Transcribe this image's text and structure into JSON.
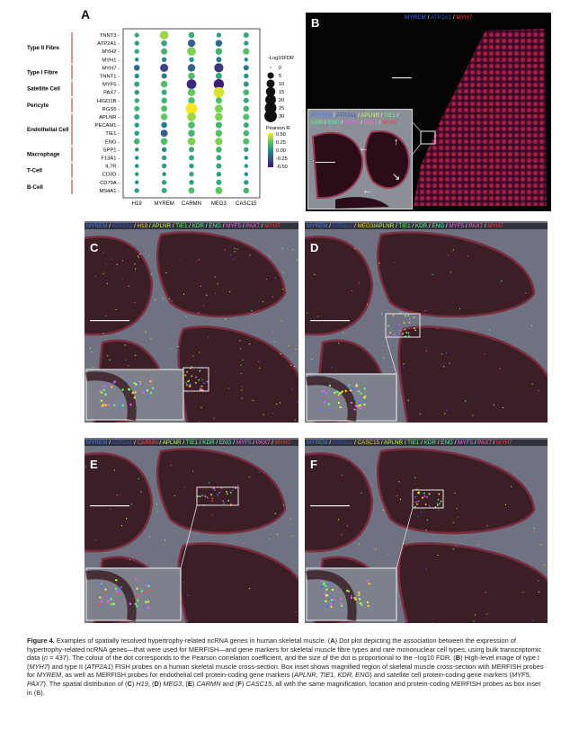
{
  "panelA": {
    "letter": "A",
    "groups": [
      {
        "label": "Type II Fibre",
        "genes": [
          "TNNT3",
          "ATP2A1",
          "MYH2",
          "MYH1"
        ]
      },
      {
        "label": "Type I Fibre",
        "genes": [
          "MYH7",
          "TNNT1"
        ]
      },
      {
        "label": "Satellite Cell",
        "genes": [
          "MYF5",
          "PAX7"
        ]
      },
      {
        "label": "Pericyte",
        "genes": [
          "HIGD1B",
          "RGS5"
        ]
      },
      {
        "label": "Endothelial Cell",
        "genes": [
          "APLNR",
          "PECAM1",
          "TIE1",
          "ENG"
        ]
      },
      {
        "label": "Macrophage",
        "genes": [
          "SPP1",
          "F13A1"
        ]
      },
      {
        "label": "T-Cell",
        "genes": [
          "IL7R",
          "CD3D"
        ]
      },
      {
        "label": "B-Cell",
        "genes": [
          "CD79A",
          "MS4A1"
        ]
      }
    ],
    "columns": [
      "H19",
      "MYREM",
      "CARMN",
      "MEG3",
      "CASC15"
    ],
    "size_legend": {
      "title": "-Log10FDR",
      "values": [
        "0",
        "5",
        "10",
        "15",
        "20",
        "25",
        "30"
      ]
    },
    "color_legend": {
      "title": "Pearson R",
      "values": [
        "0.50",
        "0.25",
        "0.00",
        "-0.25",
        "-0.50"
      ]
    },
    "colors": {
      "low": "#3b0f70",
      "mid": "#21918c",
      "high": "#fde725",
      "separator": "#cc2222"
    }
  },
  "chart_data": {
    "type": "dot-plot",
    "rows": [
      "TNNT3",
      "ATP2A1",
      "MYH2",
      "MYH1",
      "MYH7",
      "TNNT1",
      "MYF5",
      "PAX7",
      "HIGD1B",
      "RGS5",
      "APLNR",
      "PECAM1",
      "TIE1",
      "ENG",
      "SPP1",
      "F13A1",
      "IL7R",
      "CD3D",
      "CD79A",
      "MS4A1"
    ],
    "columns": [
      "H19",
      "MYREM",
      "CARMN",
      "MEG3",
      "CASC15"
    ],
    "size_label": "-Log10FDR",
    "color_label": "Pearson R",
    "color_range": [
      -0.5,
      0.5
    ],
    "size_range": [
      0,
      30
    ],
    "points": [
      [
        [
          0.1,
          2
        ],
        [
          0.35,
          12
        ],
        [
          0.1,
          4
        ],
        [
          0.05,
          2
        ],
        [
          0.1,
          3
        ]
      ],
      [
        [
          0.05,
          2
        ],
        [
          0.1,
          4
        ],
        [
          -0.2,
          8
        ],
        [
          -0.15,
          6
        ],
        [
          0.05,
          2
        ]
      ],
      [
        [
          0.1,
          2
        ],
        [
          0.15,
          5
        ],
        [
          0.3,
          12
        ],
        [
          0.15,
          6
        ],
        [
          0.2,
          5
        ]
      ],
      [
        [
          0.0,
          1
        ],
        [
          -0.05,
          2
        ],
        [
          0.0,
          2
        ],
        [
          -0.1,
          3
        ],
        [
          0.0,
          1
        ]
      ],
      [
        [
          -0.15,
          4
        ],
        [
          -0.3,
          10
        ],
        [
          -0.2,
          8
        ],
        [
          -0.35,
          14
        ],
        [
          -0.1,
          3
        ]
      ],
      [
        [
          0.0,
          2
        ],
        [
          -0.1,
          3
        ],
        [
          0.2,
          6
        ],
        [
          0.1,
          5
        ],
        [
          0.0,
          2
        ]
      ],
      [
        [
          0.1,
          3
        ],
        [
          0.2,
          6
        ],
        [
          -0.4,
          16
        ],
        [
          -0.45,
          18
        ],
        [
          0.05,
          3
        ]
      ],
      [
        [
          0.05,
          2
        ],
        [
          0.1,
          3
        ],
        [
          0.25,
          8
        ],
        [
          0.45,
          20
        ],
        [
          0.15,
          4
        ]
      ],
      [
        [
          0.1,
          2
        ],
        [
          0.15,
          4
        ],
        [
          0.2,
          6
        ],
        [
          0.2,
          5
        ],
        [
          0.1,
          3
        ]
      ],
      [
        [
          0.15,
          3
        ],
        [
          0.2,
          5
        ],
        [
          0.5,
          24
        ],
        [
          0.3,
          10
        ],
        [
          0.15,
          4
        ]
      ],
      [
        [
          0.1,
          3
        ],
        [
          0.25,
          6
        ],
        [
          0.35,
          12
        ],
        [
          0.3,
          9
        ],
        [
          0.2,
          5
        ]
      ],
      [
        [
          0.05,
          2
        ],
        [
          -0.1,
          4
        ],
        [
          0.2,
          6
        ],
        [
          0.15,
          5
        ],
        [
          0.1,
          3
        ]
      ],
      [
        [
          0.05,
          2
        ],
        [
          -0.2,
          7
        ],
        [
          0.15,
          6
        ],
        [
          0.2,
          6
        ],
        [
          0.15,
          4
        ]
      ],
      [
        [
          0.15,
          4
        ],
        [
          0.2,
          6
        ],
        [
          0.3,
          9
        ],
        [
          0.3,
          8
        ],
        [
          0.2,
          5
        ]
      ],
      [
        [
          0.05,
          1
        ],
        [
          0.0,
          2
        ],
        [
          0.1,
          3
        ],
        [
          0.15,
          4
        ],
        [
          0.05,
          2
        ]
      ],
      [
        [
          0.0,
          1
        ],
        [
          0.05,
          2
        ],
        [
          0.1,
          3
        ],
        [
          0.1,
          3
        ],
        [
          0.0,
          1
        ]
      ],
      [
        [
          0.0,
          1
        ],
        [
          0.05,
          2
        ],
        [
          0.05,
          2
        ],
        [
          0.1,
          3
        ],
        [
          0.05,
          1
        ]
      ],
      [
        [
          0.05,
          1
        ],
        [
          0.0,
          1
        ],
        [
          0.1,
          2
        ],
        [
          0.05,
          2
        ],
        [
          0.0,
          1
        ]
      ],
      [
        [
          0.0,
          1
        ],
        [
          0.05,
          2
        ],
        [
          0.05,
          2
        ],
        [
          0.1,
          3
        ],
        [
          0.05,
          2
        ]
      ],
      [
        [
          0.05,
          2
        ],
        [
          0.1,
          3
        ],
        [
          0.2,
          5
        ],
        [
          0.25,
          7
        ],
        [
          0.15,
          4
        ]
      ]
    ]
  },
  "panelB": {
    "letter": "B",
    "caption_parts": [
      {
        "text": "MYREM",
        "color": "#4466ff"
      },
      {
        "text": " / ",
        "color": "#ffffff"
      },
      {
        "text": "ATP2A1",
        "color": "#3355cc"
      },
      {
        "text": " / ",
        "color": "#ffffff"
      },
      {
        "text": "MYH7",
        "color": "#ff3333"
      }
    ],
    "inset_caption_line1": [
      {
        "text": "MYREM",
        "color": "#4477ff"
      },
      {
        "text": " / ",
        "color": "#fff"
      },
      {
        "text": "ATP2A1",
        "color": "#3355cc"
      },
      {
        "text": " / ",
        "color": "#fff"
      },
      {
        "text": "APLNR",
        "color": "#c7ff5a"
      },
      {
        "text": " / ",
        "color": "#fff"
      },
      {
        "text": "TIE1",
        "color": "#58ff5a"
      },
      {
        "text": " /",
        "color": "#fff"
      }
    ],
    "inset_caption_line2": [
      {
        "text": "KDR",
        "color": "#56ff8a"
      },
      {
        "text": " / ",
        "color": "#fff"
      },
      {
        "text": "ENG",
        "color": "#40ffb0"
      },
      {
        "text": " / ",
        "color": "#fff"
      },
      {
        "text": "MYF5",
        "color": "#ff55ff"
      },
      {
        "text": " / ",
        "color": "#fff"
      },
      {
        "text": "PAX7",
        "color": "#ff66cc"
      },
      {
        "text": " / ",
        "color": "#fff"
      },
      {
        "text": "MYH7",
        "color": "#ff3333"
      }
    ]
  },
  "panels": [
    {
      "letter": "C",
      "highlight": "H19",
      "highlight_color": "#ffd21e",
      "caption_parts": [
        {
          "text": "MYREM",
          "color": "#4477ff"
        },
        {
          "text": " / ",
          "color": "#fff"
        },
        {
          "text": "ATP2A1",
          "color": "#3355cc"
        },
        {
          "text": " / ",
          "color": "#fff"
        },
        {
          "text": "H19",
          "color": "#ffd21e"
        },
        {
          "text": " / ",
          "color": "#fff"
        },
        {
          "text": "APLNR",
          "color": "#c7ff5a"
        },
        {
          "text": " / ",
          "color": "#fff"
        },
        {
          "text": "TIE1",
          "color": "#58ff5a"
        },
        {
          "text": " / ",
          "color": "#fff"
        },
        {
          "text": "KDR",
          "color": "#56ff8a"
        },
        {
          "text": " / ",
          "color": "#fff"
        },
        {
          "text": "ENG",
          "color": "#40ffb0"
        },
        {
          "text": " / ",
          "color": "#fff"
        },
        {
          "text": "MYF5",
          "color": "#ff55ff"
        },
        {
          "text": " / ",
          "color": "#fff"
        },
        {
          "text": "PAX7",
          "color": "#ff66cc"
        },
        {
          "text": " / ",
          "color": "#fff"
        },
        {
          "text": "MYH7",
          "color": "#ff3333"
        }
      ]
    },
    {
      "letter": "D",
      "highlight": "MEG3",
      "highlight_color": "#ffd21e",
      "caption_parts": [
        {
          "text": "MYREM",
          "color": "#4477ff"
        },
        {
          "text": " / ",
          "color": "#fff"
        },
        {
          "text": "ATP2A1",
          "color": "#3355cc"
        },
        {
          "text": " / ",
          "color": "#fff"
        },
        {
          "text": "MEG3",
          "color": "#ffd21e"
        },
        {
          "text": "/",
          "color": "#fff"
        },
        {
          "text": "APLNR",
          "color": "#c7ff5a"
        },
        {
          "text": " / ",
          "color": "#fff"
        },
        {
          "text": "TIE1",
          "color": "#58ff5a"
        },
        {
          "text": " / ",
          "color": "#fff"
        },
        {
          "text": "KDR",
          "color": "#56ff8a"
        },
        {
          "text": " / ",
          "color": "#fff"
        },
        {
          "text": "ENG",
          "color": "#40ffb0"
        },
        {
          "text": " / ",
          "color": "#fff"
        },
        {
          "text": "MYF5",
          "color": "#ff55ff"
        },
        {
          "text": " / ",
          "color": "#fff"
        },
        {
          "text": "PAX7",
          "color": "#ff66cc"
        },
        {
          "text": " / ",
          "color": "#fff"
        },
        {
          "text": "MYH7",
          "color": "#ff3333"
        }
      ]
    },
    {
      "letter": "E",
      "highlight": "CARMN",
      "highlight_color": "#ff4444",
      "caption_parts": [
        {
          "text": "MYREM",
          "color": "#4477ff"
        },
        {
          "text": " / ",
          "color": "#fff"
        },
        {
          "text": "ATP2A1",
          "color": "#3355cc"
        },
        {
          "text": " / ",
          "color": "#fff"
        },
        {
          "text": "CARMN",
          "color": "#ff4444"
        },
        {
          "text": " / ",
          "color": "#fff"
        },
        {
          "text": "APLNR",
          "color": "#c7ff5a"
        },
        {
          "text": " / ",
          "color": "#fff"
        },
        {
          "text": "TIE1",
          "color": "#58ff5a"
        },
        {
          "text": " / ",
          "color": "#fff"
        },
        {
          "text": "KDR",
          "color": "#56ff8a"
        },
        {
          "text": " / ",
          "color": "#fff"
        },
        {
          "text": "ENG",
          "color": "#40ffb0"
        },
        {
          "text": " / ",
          "color": "#fff"
        },
        {
          "text": "MYF5",
          "color": "#ff55ff"
        },
        {
          "text": " / ",
          "color": "#fff"
        },
        {
          "text": "PAX7",
          "color": "#ff66cc"
        },
        {
          "text": " / ",
          "color": "#fff"
        },
        {
          "text": "MYH7",
          "color": "#ff3333"
        }
      ]
    },
    {
      "letter": "F",
      "highlight": "CASC15",
      "highlight_color": "#ffd21e",
      "caption_parts": [
        {
          "text": "MYREM",
          "color": "#4477ff"
        },
        {
          "text": " / ",
          "color": "#fff"
        },
        {
          "text": "ATP2A1",
          "color": "#3355cc"
        },
        {
          "text": " / ",
          "color": "#fff"
        },
        {
          "text": "CASC15",
          "color": "#ffd21e"
        },
        {
          "text": " / ",
          "color": "#fff"
        },
        {
          "text": "APLNR",
          "color": "#c7ff5a"
        },
        {
          "text": " / ",
          "color": "#fff"
        },
        {
          "text": "TIE1",
          "color": "#58ff5a"
        },
        {
          "text": " / ",
          "color": "#fff"
        },
        {
          "text": "KDR",
          "color": "#56ff8a"
        },
        {
          "text": " / ",
          "color": "#fff"
        },
        {
          "text": "ENG",
          "color": "#40ffb0"
        },
        {
          "text": " / ",
          "color": "#fff"
        },
        {
          "text": "MYF5",
          "color": "#ff55ff"
        },
        {
          "text": " / ",
          "color": "#fff"
        },
        {
          "text": "PAX7",
          "color": "#ff66cc"
        },
        {
          "text": " / ",
          "color": "#fff"
        },
        {
          "text": "MYH7",
          "color": "#ff3333"
        }
      ]
    }
  ],
  "caption": {
    "figure_label": "Figure 4.",
    "title": " Examples of spatially resolved hypertrophy-related ncRNA genes in human skeletal muscle. (",
    "text_A": "A",
    "text_after_A": ") Dot plot depicting the association between the expression of hypertrophy-related ncRNA genes—that were used for MERFISH—and gene markers for skeletal muscle fibre types and rare mononuclear cell types, using bulk transcriptomic data (",
    "n_italic": "n",
    "n_value": " = 437). The colour of the dot corresponds to the Pearson correlation coefficient, and the size of the dot is proportional to the −log10 FDR. (",
    "text_B": "B",
    "text_after_B": ") High-level image of type I (",
    "myh7_italic": "MYH7",
    "text_after_myh7": ") and type II (",
    "atp2a1_italic": "ATP2A1",
    "text_after_atp": ") FISH probes on a human skeletal muscle cross-section. Box inset shows magnified region of skeletal muscle cross-section with MERFISH probes for ",
    "myrem_italic": "MYREM",
    "text_after_myrem": ", as well as MERFISH probes for endothelial cell protein-coding gene markers (",
    "endo_italic": "APLNR, TIE1, KDR, ENG",
    "text_after_endo": ") and satellite cell protein-coding gene markers (",
    "sat_italic": "MYF5, PAX7",
    "text_after_sat": "). The spatial distribution of (",
    "text_C": "C",
    "text_after_C": ") ",
    "h19_italic": "H19",
    "text_after_h19": ", (",
    "text_D": "D",
    "text_after_D": ") ",
    "meg3_italic": "MEG3",
    "text_after_meg3": ", (",
    "text_E": "E",
    "text_after_E": ") ",
    "carmn_italic": "CARMN",
    "text_after_carmn": " and (",
    "text_F": "F",
    "text_after_F": ") ",
    "casc15_italic": "CASC15",
    "text_after_casc15": ", all with the same magnification, location and protein-coding MERFISH probes as box inset in (B)."
  }
}
